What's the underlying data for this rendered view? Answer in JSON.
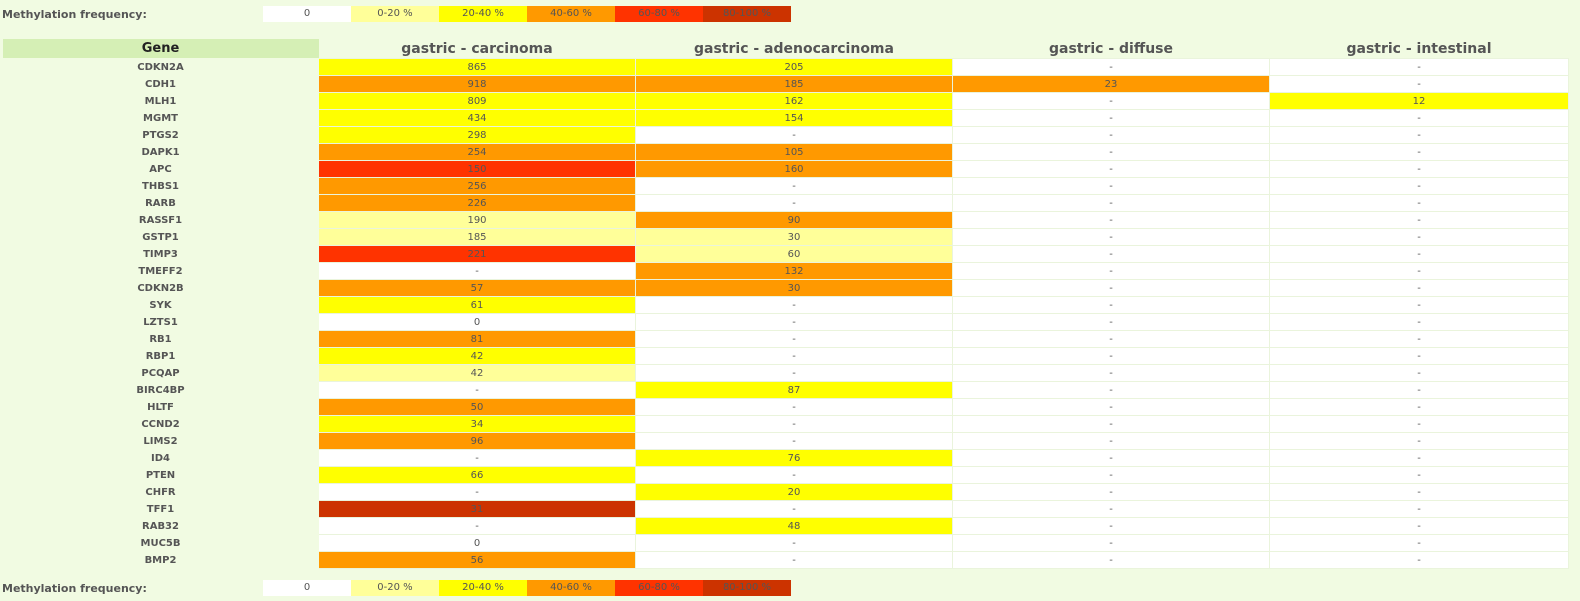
{
  "legend": {
    "title": "Methylation frequency:",
    "items": [
      {
        "label": "0",
        "color": "#ffffff"
      },
      {
        "label": "0-20 %",
        "color": "#ffff99"
      },
      {
        "label": "20-40 %",
        "color": "#ffff00"
      },
      {
        "label": "40-60 %",
        "color": "#ff9900"
      },
      {
        "label": "60-80 %",
        "color": "#ff3300"
      },
      {
        "label": "80-100 %",
        "color": "#cc3300"
      }
    ]
  },
  "table": {
    "columns": [
      "Gene",
      "gastric - carcinoma",
      "gastric - adenocarcinoma",
      "gastric - diffuse",
      "gastric - intestinal"
    ],
    "rows": [
      {
        "gene": "CDKN2A",
        "cells": [
          {
            "v": "865",
            "c": "#ffff00"
          },
          {
            "v": "205",
            "c": "#ffff00"
          },
          {
            "v": "-",
            "c": "#ffffff"
          },
          {
            "v": "-",
            "c": "#ffffff"
          }
        ]
      },
      {
        "gene": "CDH1",
        "cells": [
          {
            "v": "918",
            "c": "#ff9900"
          },
          {
            "v": "185",
            "c": "#ff9900"
          },
          {
            "v": "23",
            "c": "#ff9900"
          },
          {
            "v": "-",
            "c": "#ffffff"
          }
        ]
      },
      {
        "gene": "MLH1",
        "cells": [
          {
            "v": "809",
            "c": "#ffff00"
          },
          {
            "v": "162",
            "c": "#ffff00"
          },
          {
            "v": "-",
            "c": "#ffffff"
          },
          {
            "v": "12",
            "c": "#ffff00"
          }
        ]
      },
      {
        "gene": "MGMT",
        "cells": [
          {
            "v": "434",
            "c": "#ffff00"
          },
          {
            "v": "154",
            "c": "#ffff00"
          },
          {
            "v": "-",
            "c": "#ffffff"
          },
          {
            "v": "-",
            "c": "#ffffff"
          }
        ]
      },
      {
        "gene": "PTGS2",
        "cells": [
          {
            "v": "298",
            "c": "#ffff00"
          },
          {
            "v": "-",
            "c": "#ffffff"
          },
          {
            "v": "-",
            "c": "#ffffff"
          },
          {
            "v": "-",
            "c": "#ffffff"
          }
        ]
      },
      {
        "gene": "DAPK1",
        "cells": [
          {
            "v": "254",
            "c": "#ff9900"
          },
          {
            "v": "105",
            "c": "#ff9900"
          },
          {
            "v": "-",
            "c": "#ffffff"
          },
          {
            "v": "-",
            "c": "#ffffff"
          }
        ]
      },
      {
        "gene": "APC",
        "cells": [
          {
            "v": "150",
            "c": "#ff3300"
          },
          {
            "v": "160",
            "c": "#ff9900"
          },
          {
            "v": "-",
            "c": "#ffffff"
          },
          {
            "v": "-",
            "c": "#ffffff"
          }
        ]
      },
      {
        "gene": "THBS1",
        "cells": [
          {
            "v": "256",
            "c": "#ff9900"
          },
          {
            "v": "-",
            "c": "#ffffff"
          },
          {
            "v": "-",
            "c": "#ffffff"
          },
          {
            "v": "-",
            "c": "#ffffff"
          }
        ]
      },
      {
        "gene": "RARB",
        "cells": [
          {
            "v": "226",
            "c": "#ff9900"
          },
          {
            "v": "-",
            "c": "#ffffff"
          },
          {
            "v": "-",
            "c": "#ffffff"
          },
          {
            "v": "-",
            "c": "#ffffff"
          }
        ]
      },
      {
        "gene": "RASSF1",
        "cells": [
          {
            "v": "190",
            "c": "#ffff99"
          },
          {
            "v": "90",
            "c": "#ff9900"
          },
          {
            "v": "-",
            "c": "#ffffff"
          },
          {
            "v": "-",
            "c": "#ffffff"
          }
        ]
      },
      {
        "gene": "GSTP1",
        "cells": [
          {
            "v": "185",
            "c": "#ffff99"
          },
          {
            "v": "30",
            "c": "#ffff99"
          },
          {
            "v": "-",
            "c": "#ffffff"
          },
          {
            "v": "-",
            "c": "#ffffff"
          }
        ]
      },
      {
        "gene": "TIMP3",
        "cells": [
          {
            "v": "221",
            "c": "#ff3300"
          },
          {
            "v": "60",
            "c": "#ffff99"
          },
          {
            "v": "-",
            "c": "#ffffff"
          },
          {
            "v": "-",
            "c": "#ffffff"
          }
        ]
      },
      {
        "gene": "TMEFF2",
        "cells": [
          {
            "v": "-",
            "c": "#ffffff"
          },
          {
            "v": "132",
            "c": "#ff9900"
          },
          {
            "v": "-",
            "c": "#ffffff"
          },
          {
            "v": "-",
            "c": "#ffffff"
          }
        ]
      },
      {
        "gene": "CDKN2B",
        "cells": [
          {
            "v": "57",
            "c": "#ff9900"
          },
          {
            "v": "30",
            "c": "#ff9900"
          },
          {
            "v": "-",
            "c": "#ffffff"
          },
          {
            "v": "-",
            "c": "#ffffff"
          }
        ]
      },
      {
        "gene": "SYK",
        "cells": [
          {
            "v": "61",
            "c": "#ffff00"
          },
          {
            "v": "-",
            "c": "#ffffff"
          },
          {
            "v": "-",
            "c": "#ffffff"
          },
          {
            "v": "-",
            "c": "#ffffff"
          }
        ]
      },
      {
        "gene": "LZTS1",
        "cells": [
          {
            "v": "0",
            "c": "#ffffff"
          },
          {
            "v": "-",
            "c": "#ffffff"
          },
          {
            "v": "-",
            "c": "#ffffff"
          },
          {
            "v": "-",
            "c": "#ffffff"
          }
        ]
      },
      {
        "gene": "RB1",
        "cells": [
          {
            "v": "81",
            "c": "#ff9900"
          },
          {
            "v": "-",
            "c": "#ffffff"
          },
          {
            "v": "-",
            "c": "#ffffff"
          },
          {
            "v": "-",
            "c": "#ffffff"
          }
        ]
      },
      {
        "gene": "RBP1",
        "cells": [
          {
            "v": "42",
            "c": "#ffff00"
          },
          {
            "v": "-",
            "c": "#ffffff"
          },
          {
            "v": "-",
            "c": "#ffffff"
          },
          {
            "v": "-",
            "c": "#ffffff"
          }
        ]
      },
      {
        "gene": "PCQAP",
        "cells": [
          {
            "v": "42",
            "c": "#ffff99"
          },
          {
            "v": "-",
            "c": "#ffffff"
          },
          {
            "v": "-",
            "c": "#ffffff"
          },
          {
            "v": "-",
            "c": "#ffffff"
          }
        ]
      },
      {
        "gene": "BIRC4BP",
        "cells": [
          {
            "v": "-",
            "c": "#ffffff"
          },
          {
            "v": "87",
            "c": "#ffff00"
          },
          {
            "v": "-",
            "c": "#ffffff"
          },
          {
            "v": "-",
            "c": "#ffffff"
          }
        ]
      },
      {
        "gene": "HLTF",
        "cells": [
          {
            "v": "50",
            "c": "#ff9900"
          },
          {
            "v": "-",
            "c": "#ffffff"
          },
          {
            "v": "-",
            "c": "#ffffff"
          },
          {
            "v": "-",
            "c": "#ffffff"
          }
        ]
      },
      {
        "gene": "CCND2",
        "cells": [
          {
            "v": "34",
            "c": "#ffff00"
          },
          {
            "v": "-",
            "c": "#ffffff"
          },
          {
            "v": "-",
            "c": "#ffffff"
          },
          {
            "v": "-",
            "c": "#ffffff"
          }
        ]
      },
      {
        "gene": "LIMS2",
        "cells": [
          {
            "v": "96",
            "c": "#ff9900"
          },
          {
            "v": "-",
            "c": "#ffffff"
          },
          {
            "v": "-",
            "c": "#ffffff"
          },
          {
            "v": "-",
            "c": "#ffffff"
          }
        ]
      },
      {
        "gene": "ID4",
        "cells": [
          {
            "v": "-",
            "c": "#ffffff"
          },
          {
            "v": "76",
            "c": "#ffff00"
          },
          {
            "v": "-",
            "c": "#ffffff"
          },
          {
            "v": "-",
            "c": "#ffffff"
          }
        ]
      },
      {
        "gene": "PTEN",
        "cells": [
          {
            "v": "66",
            "c": "#ffff00"
          },
          {
            "v": "-",
            "c": "#ffffff"
          },
          {
            "v": "-",
            "c": "#ffffff"
          },
          {
            "v": "-",
            "c": "#ffffff"
          }
        ]
      },
      {
        "gene": "CHFR",
        "cells": [
          {
            "v": "-",
            "c": "#ffffff"
          },
          {
            "v": "20",
            "c": "#ffff00"
          },
          {
            "v": "-",
            "c": "#ffffff"
          },
          {
            "v": "-",
            "c": "#ffffff"
          }
        ]
      },
      {
        "gene": "TFF1",
        "cells": [
          {
            "v": "31",
            "c": "#cc3300"
          },
          {
            "v": "-",
            "c": "#ffffff"
          },
          {
            "v": "-",
            "c": "#ffffff"
          },
          {
            "v": "-",
            "c": "#ffffff"
          }
        ]
      },
      {
        "gene": "RAB32",
        "cells": [
          {
            "v": "-",
            "c": "#ffffff"
          },
          {
            "v": "48",
            "c": "#ffff00"
          },
          {
            "v": "-",
            "c": "#ffffff"
          },
          {
            "v": "-",
            "c": "#ffffff"
          }
        ]
      },
      {
        "gene": "MUC5B",
        "cells": [
          {
            "v": "0",
            "c": "#ffffff"
          },
          {
            "v": "-",
            "c": "#ffffff"
          },
          {
            "v": "-",
            "c": "#ffffff"
          },
          {
            "v": "-",
            "c": "#ffffff"
          }
        ]
      },
      {
        "gene": "BMP2",
        "cells": [
          {
            "v": "56",
            "c": "#ff9900"
          },
          {
            "v": "-",
            "c": "#ffffff"
          },
          {
            "v": "-",
            "c": "#ffffff"
          },
          {
            "v": "-",
            "c": "#ffffff"
          }
        ]
      }
    ]
  }
}
